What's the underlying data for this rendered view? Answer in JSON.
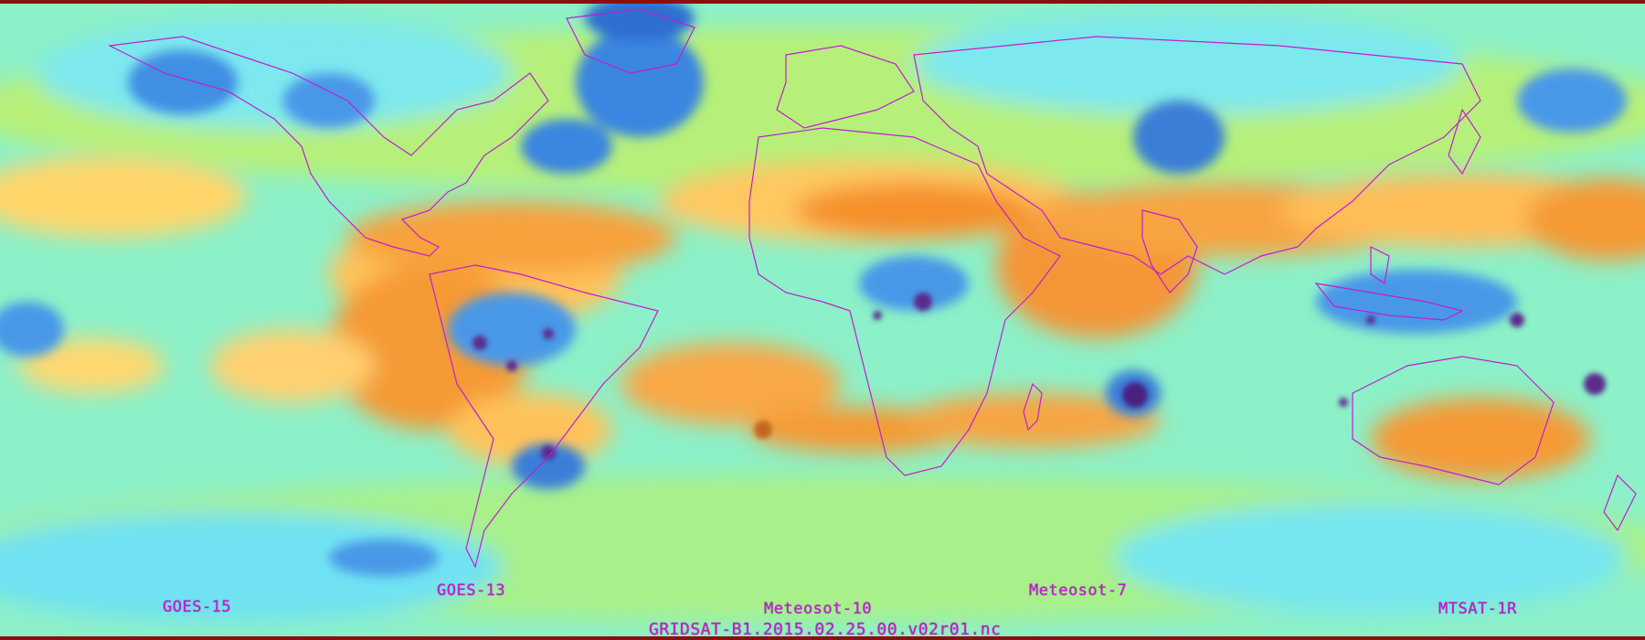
{
  "map": {
    "satellites": [
      {
        "id": "goes15",
        "label": "GOES-15"
      },
      {
        "id": "goes13",
        "label": "GOES-13"
      },
      {
        "id": "met10",
        "label": "Meteosot-10"
      },
      {
        "id": "met7",
        "label": "Meteosot-7"
      },
      {
        "id": "mtsat",
        "label": "MTSAT-1R"
      }
    ],
    "filename": "GRIDSAT-B1.2015.02.25.00.v02r01.nc"
  },
  "colors": {
    "coastline": "#c21dd0",
    "label": "#c21dd0",
    "dry": "#f07a18",
    "warm": "#ffd86a",
    "mid": "#9bef8a",
    "moist": "#66e8f4",
    "cloud": "#3a8fe0",
    "deep_convection": "#5a2a8c",
    "polar_edge": "#8a1010"
  },
  "layers": [
    "water-vapor-imagery",
    "coastlines",
    "satellite-labels"
  ]
}
